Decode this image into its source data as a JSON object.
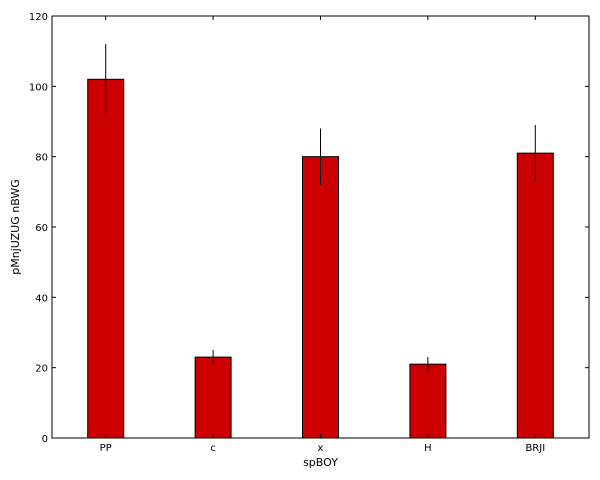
{
  "chart_data": {
    "type": "bar",
    "title": "",
    "xlabel": "spBOY",
    "ylabel": "pMnjUZUG nBWG",
    "categories": [
      "PP",
      "c",
      "x",
      "H",
      "BRJI"
    ],
    "values": [
      102,
      23,
      80,
      21,
      81
    ],
    "errors": [
      10,
      2,
      8,
      2,
      8
    ],
    "ylim": [
      0,
      120
    ],
    "yticks": [
      0,
      20,
      40,
      60,
      80,
      100,
      120
    ],
    "grid": false,
    "bar_color": "#cc0000",
    "edge_color": "#000000"
  }
}
